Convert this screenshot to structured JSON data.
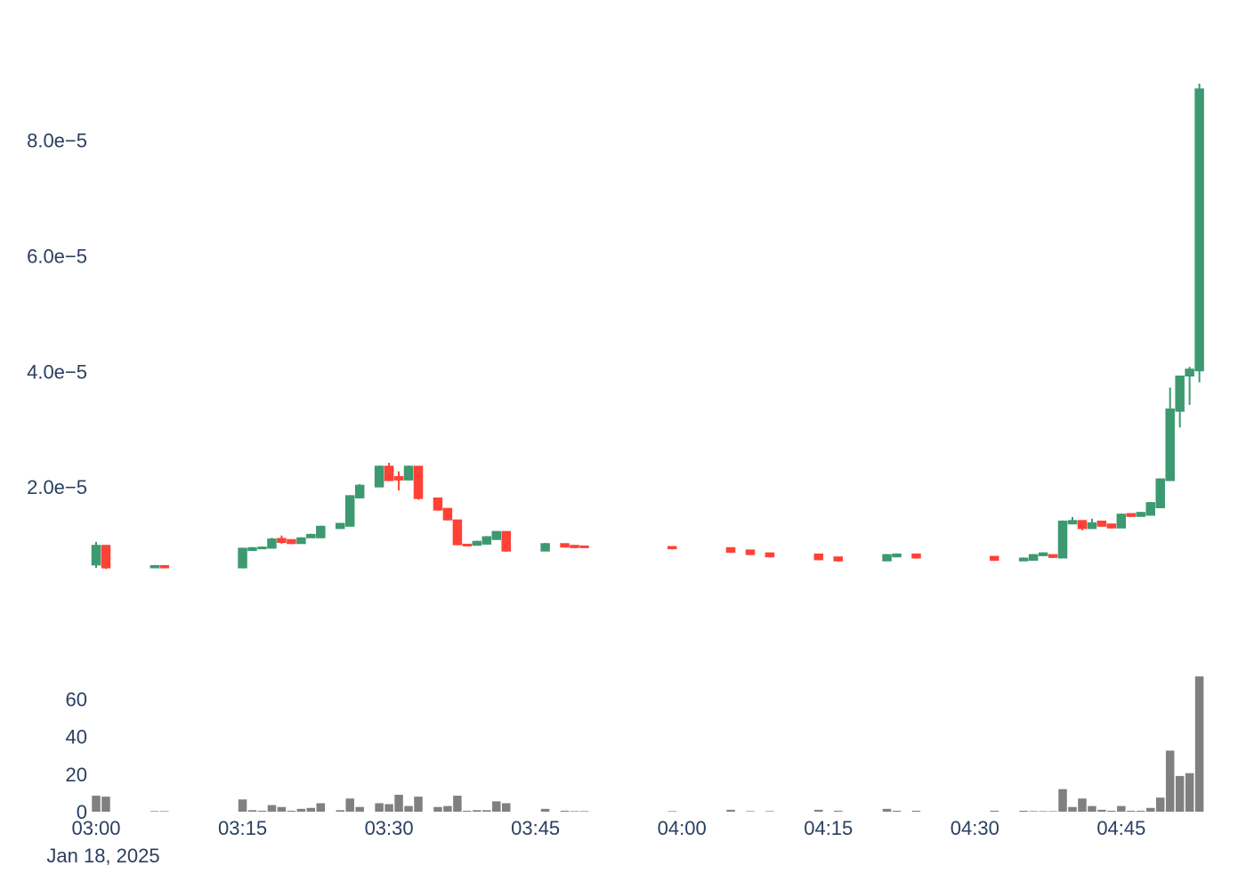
{
  "chart_data": {
    "type": "candlestick",
    "x_unit": "minute",
    "x_start": "2025-01-18 03:00",
    "x_range_minutes": [
      -0.5,
      57.5
    ],
    "price_ylim": [
      0,
      9.35e-05
    ],
    "volume_ylim": [
      0,
      72
    ],
    "grid": false,
    "legend": "none",
    "colors": {
      "up": "#3d9970",
      "down": "#ff4136",
      "volume": "#808080",
      "text": "#2a3f5f"
    },
    "price_ticks": [
      {
        "value": 2e-05,
        "label": "2.0e−5"
      },
      {
        "value": 4e-05,
        "label": "4.0e−5"
      },
      {
        "value": 6e-05,
        "label": "6.0e−5"
      },
      {
        "value": 8e-05,
        "label": "8.0e−5"
      }
    ],
    "volume_ticks": [
      {
        "value": 0,
        "label": "0"
      },
      {
        "value": 20,
        "label": "20"
      },
      {
        "value": 40,
        "label": "40"
      },
      {
        "value": 60,
        "label": "60"
      }
    ],
    "x_ticks": [
      {
        "minute": 0,
        "label": "03:00"
      },
      {
        "minute": 15,
        "label": "03:15"
      },
      {
        "minute": 30,
        "label": "03:30"
      },
      {
        "minute": 45,
        "label": "03:45"
      },
      {
        "minute": 60,
        "label": "04:00"
      },
      {
        "minute": 75,
        "label": "04:15"
      },
      {
        "minute": 90,
        "label": "04:30"
      },
      {
        "minute": 105,
        "label": "04:45"
      }
    ],
    "date_label": "Jan 18, 2025",
    "candles": [
      {
        "t": "03:00",
        "m": 0,
        "o": 6.5e-06,
        "h": 1.05e-05,
        "l": 6e-06,
        "c": 9.9e-06,
        "v": 8.5
      },
      {
        "t": "03:01",
        "m": 1,
        "o": 9.9e-06,
        "h": 9.9e-06,
        "l": 5.8e-06,
        "c": 6e-06,
        "v": 8.0
      },
      {
        "t": "03:06",
        "m": 6,
        "o": 6e-06,
        "h": 6.5e-06,
        "l": 6e-06,
        "c": 6.4e-06,
        "v": 0.3
      },
      {
        "t": "03:07",
        "m": 7,
        "o": 6.4e-06,
        "h": 6.4e-06,
        "l": 6e-06,
        "c": 6e-06,
        "v": 0.3
      },
      {
        "t": "03:15",
        "m": 15,
        "o": 6e-06,
        "h": 9.5e-06,
        "l": 5.9e-06,
        "c": 9.4e-06,
        "v": 6.5
      },
      {
        "t": "03:16",
        "m": 16,
        "o": 9e-06,
        "h": 9.6e-06,
        "l": 9e-06,
        "c": 9.5e-06,
        "v": 0.8
      },
      {
        "t": "03:17",
        "m": 17,
        "o": 9.4e-06,
        "h": 9.7e-06,
        "l": 9.4e-06,
        "c": 9.6e-06,
        "v": 0.5
      },
      {
        "t": "03:18",
        "m": 18,
        "o": 9.4e-06,
        "h": 1.12e-05,
        "l": 9.4e-06,
        "c": 1.1e-05,
        "v": 3.5
      },
      {
        "t": "03:19",
        "m": 19,
        "o": 1.11e-05,
        "h": 1.16e-05,
        "l": 1.02e-05,
        "c": 1.04e-05,
        "v": 2.5
      },
      {
        "t": "03:20",
        "m": 20,
        "o": 1.09e-05,
        "h": 1.09e-05,
        "l": 1.01e-05,
        "c": 1.02e-05,
        "v": 0.5
      },
      {
        "t": "03:21",
        "m": 21,
        "o": 1.02e-05,
        "h": 1.13e-05,
        "l": 1.02e-05,
        "c": 1.12e-05,
        "v": 1.5
      },
      {
        "t": "03:22",
        "m": 22,
        "o": 1.12e-05,
        "h": 1.19e-05,
        "l": 1.12e-05,
        "c": 1.18e-05,
        "v": 2.0
      },
      {
        "t": "03:23",
        "m": 23,
        "o": 1.12e-05,
        "h": 1.33e-05,
        "l": 1.12e-05,
        "c": 1.32e-05,
        "v": 4.5
      },
      {
        "t": "03:25",
        "m": 25,
        "o": 1.28e-05,
        "h": 1.38e-05,
        "l": 1.28e-05,
        "c": 1.37e-05,
        "v": 0.8
      },
      {
        "t": "03:26",
        "m": 26,
        "o": 1.32e-05,
        "h": 1.86e-05,
        "l": 1.32e-05,
        "c": 1.85e-05,
        "v": 7.0
      },
      {
        "t": "03:27",
        "m": 27,
        "o": 1.81e-05,
        "h": 2.05e-05,
        "l": 1.81e-05,
        "c": 2.03e-05,
        "v": 2.5
      },
      {
        "t": "03:29",
        "m": 29,
        "o": 2e-05,
        "h": 2.37e-05,
        "l": 2e-05,
        "c": 2.36e-05,
        "v": 4.5
      },
      {
        "t": "03:30",
        "m": 30,
        "o": 2.36e-05,
        "h": 2.42e-05,
        "l": 2.1e-05,
        "c": 2.11e-05,
        "v": 4.0
      },
      {
        "t": "03:31",
        "m": 31,
        "o": 2.18e-05,
        "h": 2.27e-05,
        "l": 1.94e-05,
        "c": 2.12e-05,
        "v": 9.0
      },
      {
        "t": "03:32",
        "m": 32,
        "o": 2.12e-05,
        "h": 2.37e-05,
        "l": 2.12e-05,
        "c": 2.36e-05,
        "v": 3.0
      },
      {
        "t": "03:33",
        "m": 33,
        "o": 2.36e-05,
        "h": 2.36e-05,
        "l": 1.78e-05,
        "c": 1.8e-05,
        "v": 8.0
      },
      {
        "t": "03:35",
        "m": 35,
        "o": 1.81e-05,
        "h": 1.81e-05,
        "l": 1.59e-05,
        "c": 1.6e-05,
        "v": 2.5
      },
      {
        "t": "03:36",
        "m": 36,
        "o": 1.63e-05,
        "h": 1.63e-05,
        "l": 1.42e-05,
        "c": 1.43e-05,
        "v": 3.0
      },
      {
        "t": "03:37",
        "m": 37,
        "o": 1.43e-05,
        "h": 1.43e-05,
        "l": 9.9e-06,
        "c": 1e-05,
        "v": 8.5
      },
      {
        "t": "03:38",
        "m": 38,
        "o": 1.01e-05,
        "h": 1.01e-05,
        "l": 9.9e-06,
        "c": 1e-05,
        "v": 0.5
      },
      {
        "t": "03:39",
        "m": 39,
        "o": 9.9e-06,
        "h": 1.07e-05,
        "l": 9.9e-06,
        "c": 1.06e-05,
        "v": 0.8
      },
      {
        "t": "03:40",
        "m": 40,
        "o": 1.01e-05,
        "h": 1.15e-05,
        "l": 1.01e-05,
        "c": 1.14e-05,
        "v": 0.8
      },
      {
        "t": "03:41",
        "m": 41,
        "o": 1.09e-05,
        "h": 1.24e-05,
        "l": 1.09e-05,
        "c": 1.23e-05,
        "v": 5.5
      },
      {
        "t": "03:42",
        "m": 42,
        "o": 1.23e-05,
        "h": 1.23e-05,
        "l": 8.8e-06,
        "c": 8.9e-06,
        "v": 4.5
      },
      {
        "t": "03:46",
        "m": 46,
        "o": 8.9e-06,
        "h": 1.03e-05,
        "l": 8.9e-06,
        "c": 1.02e-05,
        "v": 1.5
      },
      {
        "t": "03:48",
        "m": 48,
        "o": 1.02e-05,
        "h": 1.02e-05,
        "l": 9.5e-06,
        "c": 9.6e-06,
        "v": 0.5
      },
      {
        "t": "03:49",
        "m": 49,
        "o": 9.9e-06,
        "h": 9.9e-06,
        "l": 9.4e-06,
        "c": 9.5e-06,
        "v": 0.3
      },
      {
        "t": "03:50",
        "m": 50,
        "o": 9.8e-06,
        "h": 9.8e-06,
        "l": 9.4e-06,
        "c": 9.5e-06,
        "v": 0.3
      },
      {
        "t": "03:59",
        "m": 59,
        "o": 9.7e-06,
        "h": 9.7e-06,
        "l": 9.2e-06,
        "c": 9.3e-06,
        "v": 0.3
      },
      {
        "t": "04:05",
        "m": 65,
        "o": 9.5e-06,
        "h": 9.5e-06,
        "l": 8.6e-06,
        "c": 8.7e-06,
        "v": 1.0
      },
      {
        "t": "04:07",
        "m": 67,
        "o": 9.1e-06,
        "h": 9.1e-06,
        "l": 8.2e-06,
        "c": 8.3e-06,
        "v": 0.3
      },
      {
        "t": "04:09",
        "m": 69,
        "o": 8.6e-06,
        "h": 8.6e-06,
        "l": 7.8e-06,
        "c": 7.9e-06,
        "v": 0.3
      },
      {
        "t": "04:14",
        "m": 74,
        "o": 8.4e-06,
        "h": 8.4e-06,
        "l": 7.3e-06,
        "c": 7.4e-06,
        "v": 1.0
      },
      {
        "t": "04:16",
        "m": 76,
        "o": 7.9e-06,
        "h": 7.9e-06,
        "l": 7.1e-06,
        "c": 7.2e-06,
        "v": 0.5
      },
      {
        "t": "04:21",
        "m": 81,
        "o": 7.2e-06,
        "h": 8.4e-06,
        "l": 7.2e-06,
        "c": 8.3e-06,
        "v": 1.5
      },
      {
        "t": "04:22",
        "m": 82,
        "o": 7.9e-06,
        "h": 8.5e-06,
        "l": 7.9e-06,
        "c": 8.4e-06,
        "v": 0.5
      },
      {
        "t": "04:24",
        "m": 84,
        "o": 8.4e-06,
        "h": 8.4e-06,
        "l": 7.6e-06,
        "c": 7.7e-06,
        "v": 0.5
      },
      {
        "t": "04:32",
        "m": 92,
        "o": 8e-06,
        "h": 8e-06,
        "l": 7.2e-06,
        "c": 7.3e-06,
        "v": 0.5
      },
      {
        "t": "04:35",
        "m": 95,
        "o": 7.2e-06,
        "h": 7.8e-06,
        "l": 7.2e-06,
        "c": 7.7e-06,
        "v": 0.5
      },
      {
        "t": "04:36",
        "m": 96,
        "o": 7.3e-06,
        "h": 8.4e-06,
        "l": 7.3e-06,
        "c": 8.3e-06,
        "v": 0.3
      },
      {
        "t": "04:37",
        "m": 97,
        "o": 8.1e-06,
        "h": 8.7e-06,
        "l": 8.1e-06,
        "c": 8.6e-06,
        "v": 0.3
      },
      {
        "t": "04:38",
        "m": 98,
        "o": 8.3e-06,
        "h": 8.3e-06,
        "l": 7.7e-06,
        "c": 7.8e-06,
        "v": 0.3
      },
      {
        "t": "04:39",
        "m": 99,
        "o": 7.7e-06,
        "h": 1.42e-05,
        "l": 7.7e-06,
        "c": 1.41e-05,
        "v": 12.0
      },
      {
        "t": "04:40",
        "m": 100,
        "o": 1.36e-05,
        "h": 1.48e-05,
        "l": 1.36e-05,
        "c": 1.42e-05,
        "v": 2.5
      },
      {
        "t": "04:41",
        "m": 101,
        "o": 1.42e-05,
        "h": 1.42e-05,
        "l": 1.25e-05,
        "c": 1.28e-05,
        "v": 7.0
      },
      {
        "t": "04:42",
        "m": 102,
        "o": 1.28e-05,
        "h": 1.45e-05,
        "l": 1.28e-05,
        "c": 1.38e-05,
        "v": 3.0
      },
      {
        "t": "04:43",
        "m": 103,
        "o": 1.41e-05,
        "h": 1.41e-05,
        "l": 1.31e-05,
        "c": 1.32e-05,
        "v": 1.0
      },
      {
        "t": "04:44",
        "m": 104,
        "o": 1.36e-05,
        "h": 1.36e-05,
        "l": 1.28e-05,
        "c": 1.29e-05,
        "v": 0.5
      },
      {
        "t": "04:45",
        "m": 105,
        "o": 1.29e-05,
        "h": 1.54e-05,
        "l": 1.29e-05,
        "c": 1.53e-05,
        "v": 3.0
      },
      {
        "t": "04:46",
        "m": 106,
        "o": 1.54e-05,
        "h": 1.54e-05,
        "l": 1.48e-05,
        "c": 1.49e-05,
        "v": 0.5
      },
      {
        "t": "04:47",
        "m": 107,
        "o": 1.49e-05,
        "h": 1.57e-05,
        "l": 1.49e-05,
        "c": 1.56e-05,
        "v": 0.5
      },
      {
        "t": "04:48",
        "m": 108,
        "o": 1.51e-05,
        "h": 1.74e-05,
        "l": 1.51e-05,
        "c": 1.73e-05,
        "v": 2.0
      },
      {
        "t": "04:49",
        "m": 109,
        "o": 1.64e-05,
        "h": 2.15e-05,
        "l": 1.64e-05,
        "c": 2.14e-05,
        "v": 7.5
      },
      {
        "t": "04:50",
        "m": 110,
        "o": 2.11e-05,
        "h": 3.72e-05,
        "l": 2.11e-05,
        "c": 3.35e-05,
        "v": 32.5
      },
      {
        "t": "04:51",
        "m": 111,
        "o": 3.31e-05,
        "h": 3.93e-05,
        "l": 3.03e-05,
        "c": 3.92e-05,
        "v": 19.0
      },
      {
        "t": "04:52",
        "m": 112,
        "o": 3.92e-05,
        "h": 4.08e-05,
        "l": 3.42e-05,
        "c": 4.04e-05,
        "v": 20.5
      },
      {
        "t": "04:53",
        "m": 113,
        "o": 4.01e-05,
        "h": 8.98e-05,
        "l": 3.81e-05,
        "c": 8.89e-05,
        "v": 72.0
      }
    ]
  }
}
